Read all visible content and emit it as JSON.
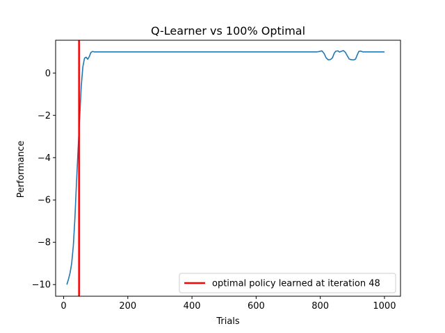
{
  "chart_data": {
    "type": "line",
    "title": "Q-Learner vs 100% Optimal",
    "xlabel": "Trials",
    "ylabel": "Performance",
    "xlim": [
      -25,
      1050
    ],
    "ylim": [
      -10.55,
      1.55
    ],
    "xticks": [
      0,
      200,
      400,
      600,
      800,
      1000
    ],
    "yticks": [
      -10,
      -8,
      -6,
      -4,
      -2,
      0
    ],
    "grid": false,
    "legend_position": "lower-right",
    "series": [
      {
        "color": "#1f77b4",
        "points": [
          [
            10,
            -10.0
          ],
          [
            15,
            -9.75
          ],
          [
            20,
            -9.45
          ],
          [
            25,
            -9.0
          ],
          [
            30,
            -8.2
          ],
          [
            35,
            -6.9
          ],
          [
            40,
            -5.2
          ],
          [
            45,
            -3.6
          ],
          [
            50,
            -2.1
          ],
          [
            55,
            -0.6
          ],
          [
            60,
            0.3
          ],
          [
            65,
            0.7
          ],
          [
            70,
            0.75
          ],
          [
            75,
            0.65
          ],
          [
            80,
            0.78
          ],
          [
            85,
            0.97
          ],
          [
            90,
            1.02
          ],
          [
            95,
            1.0
          ],
          [
            100,
            1.0
          ],
          [
            200,
            1.0
          ],
          [
            300,
            1.0
          ],
          [
            400,
            1.0
          ],
          [
            500,
            1.0
          ],
          [
            600,
            1.0
          ],
          [
            700,
            1.0
          ],
          [
            790,
            1.0
          ],
          [
            798,
            1.02
          ],
          [
            805,
            1.05
          ],
          [
            812,
            0.92
          ],
          [
            818,
            0.72
          ],
          [
            825,
            0.62
          ],
          [
            832,
            0.64
          ],
          [
            838,
            0.72
          ],
          [
            843,
            0.92
          ],
          [
            848,
            1.03
          ],
          [
            855,
            1.05
          ],
          [
            860,
            0.99
          ],
          [
            866,
            1.03
          ],
          [
            872,
            1.06
          ],
          [
            878,
            0.98
          ],
          [
            884,
            0.82
          ],
          [
            890,
            0.66
          ],
          [
            897,
            0.63
          ],
          [
            904,
            0.62
          ],
          [
            910,
            0.66
          ],
          [
            915,
            0.85
          ],
          [
            920,
            1.02
          ],
          [
            926,
            1.04
          ],
          [
            932,
            1.0
          ],
          [
            1000,
            1.0
          ]
        ]
      }
    ],
    "vline": {
      "x": 48,
      "color": "#ff0000",
      "label": "optimal policy learned at iteration 48"
    }
  }
}
